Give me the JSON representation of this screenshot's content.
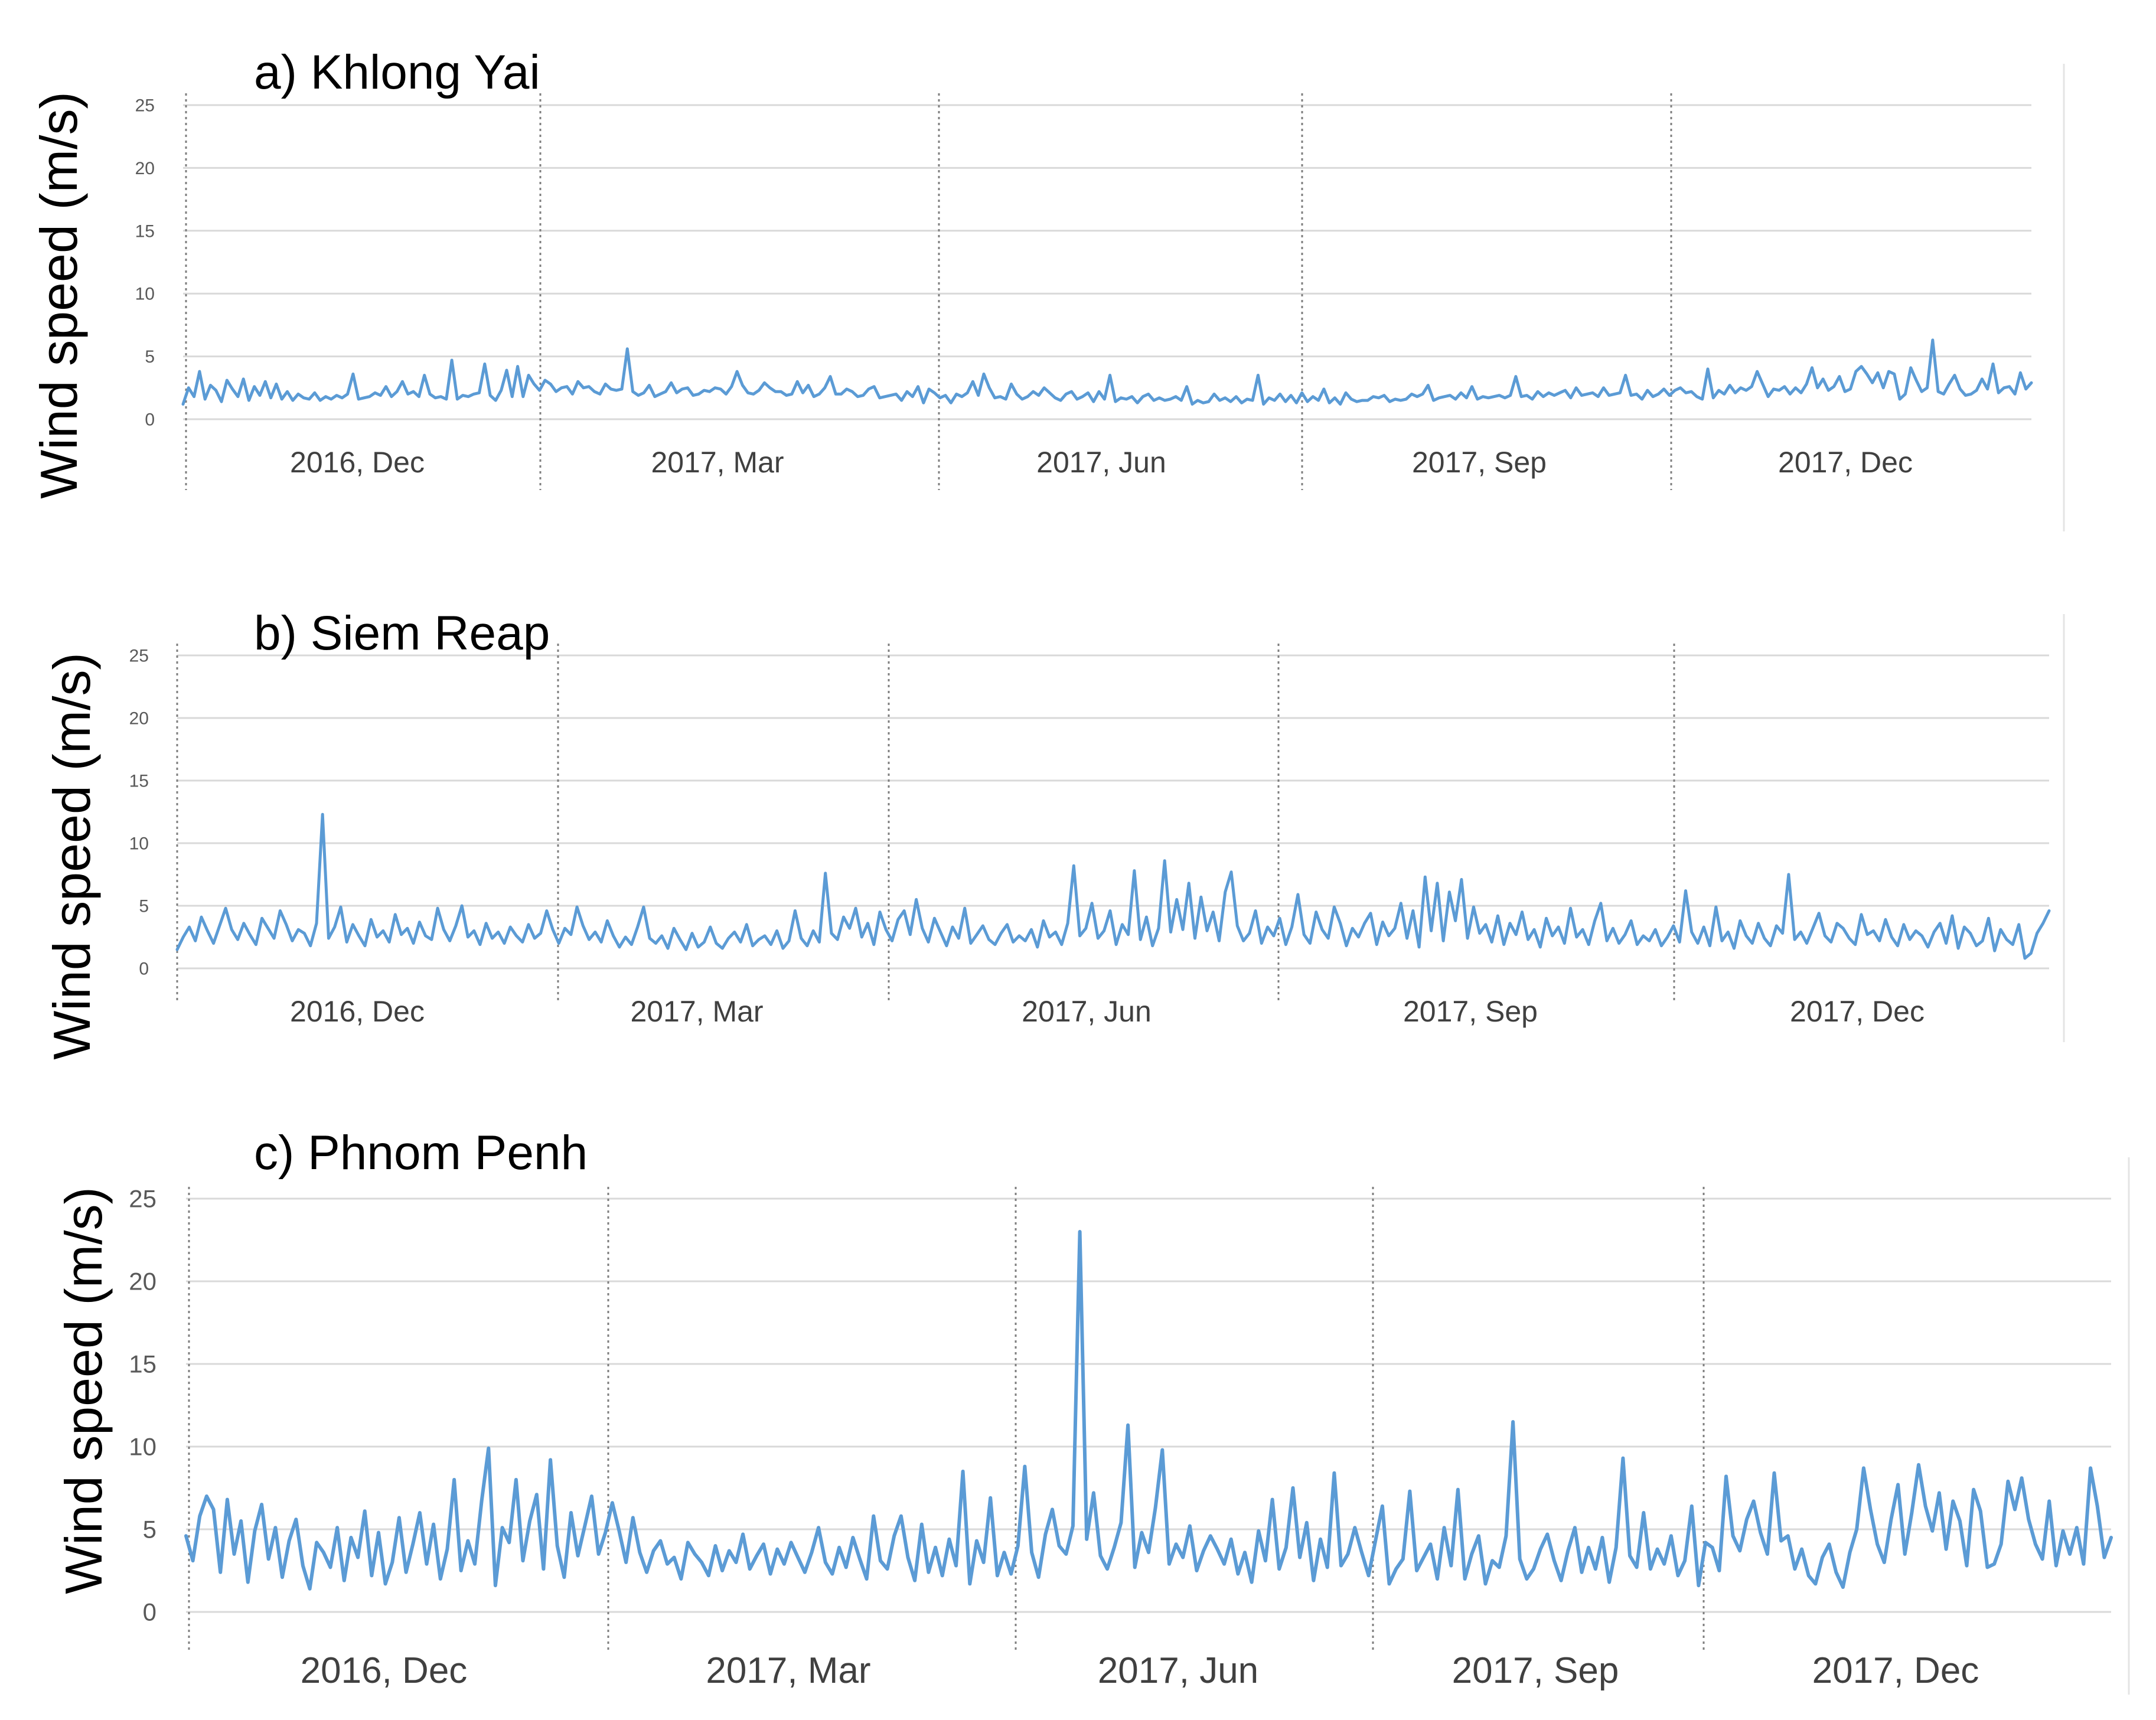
{
  "chart_data": [
    {
      "type": "line",
      "title": "a) Khlong Yai",
      "ylabel": "Wind speed (m/s)",
      "xlabel": "",
      "ylim": [
        0,
        25
      ],
      "yticks": [
        0,
        5,
        10,
        15,
        20,
        25
      ],
      "x_range": [
        "2016-11-01",
        "2018-01-31"
      ],
      "xtick_labels": [
        "2016, Dec",
        "2017, Mar",
        "2017, Jun",
        "2017, Sep",
        "2017, Dec"
      ],
      "grid": true,
      "color": "#5b9bd5",
      "series": [
        {
          "name": "",
          "values": [
            1.2,
            2.5,
            1.8,
            3.8,
            1.6,
            2.7,
            2.3,
            1.4,
            3.1,
            2.4,
            1.8,
            3.2,
            1.5,
            2.6,
            1.9,
            3.0,
            1.7,
            2.8,
            1.6,
            2.2,
            1.5,
            2.0,
            1.7,
            1.6,
            2.1,
            1.5,
            1.8,
            1.6,
            1.9,
            1.7,
            2.0,
            3.6,
            1.6,
            1.7,
            1.8,
            2.1,
            1.9,
            2.6,
            1.8,
            2.2,
            3.0,
            2.0,
            2.2,
            1.8,
            3.5,
            2.0,
            1.7,
            1.8,
            1.6,
            4.7,
            1.6,
            1.9,
            1.8,
            2.0,
            2.1,
            4.4,
            1.9,
            1.5,
            2.3,
            3.9,
            1.8,
            4.2,
            1.8,
            3.5,
            2.8,
            2.3,
            3.1,
            2.8,
            2.2,
            2.5,
            2.6,
            2.0,
            3.0,
            2.5,
            2.6,
            2.2,
            2.0,
            2.8,
            2.4,
            2.3,
            2.4,
            5.6,
            2.2,
            1.9,
            2.1,
            2.7,
            1.8,
            2.0,
            2.2,
            2.9,
            2.1,
            2.4,
            2.5,
            1.9,
            2.0,
            2.3,
            2.2,
            2.5,
            2.4,
            2.0,
            2.6,
            3.8,
            2.7,
            2.1,
            2.0,
            2.3,
            2.9,
            2.5,
            2.2,
            2.2,
            1.9,
            2.0,
            3.0,
            2.1,
            2.7,
            1.8,
            2.0,
            2.5,
            3.4,
            2.0,
            2.0,
            2.4,
            2.2,
            1.8,
            1.9,
            2.4,
            2.6,
            1.7,
            1.8,
            1.9,
            2.0,
            1.5,
            2.2,
            1.8,
            2.6,
            1.3,
            2.4,
            2.1,
            1.7,
            1.9,
            1.3,
            2.0,
            1.8,
            2.1,
            3.0,
            1.9,
            3.6,
            2.5,
            1.7,
            1.8,
            1.6,
            2.8,
            2.0,
            1.6,
            1.8,
            2.2,
            1.9,
            2.5,
            2.1,
            1.7,
            1.5,
            2.0,
            2.2,
            1.6,
            1.8,
            2.1,
            1.4,
            2.2,
            1.6,
            3.5,
            1.4,
            1.7,
            1.6,
            1.8,
            1.3,
            1.8,
            2.0,
            1.5,
            1.7,
            1.5,
            1.6,
            1.8,
            1.5,
            2.6,
            1.2,
            1.5,
            1.3,
            1.4,
            2.0,
            1.5,
            1.7,
            1.4,
            1.8,
            1.3,
            1.6,
            1.5,
            3.5,
            1.2,
            1.7,
            1.5,
            2.0,
            1.4,
            1.9,
            1.3,
            2.1,
            1.4,
            1.8,
            1.5,
            2.4,
            1.3,
            1.7,
            1.2,
            2.1,
            1.6,
            1.4,
            1.5,
            1.5,
            1.8,
            1.7,
            1.9,
            1.4,
            1.6,
            1.5,
            1.6,
            2.0,
            1.8,
            2.0,
            2.7,
            1.5,
            1.7,
            1.8,
            1.9,
            1.6,
            2.1,
            1.7,
            2.6,
            1.6,
            1.8,
            1.7,
            1.8,
            1.9,
            1.7,
            1.9,
            3.4,
            1.8,
            1.9,
            1.6,
            2.2,
            1.8,
            2.1,
            1.9,
            2.1,
            2.3,
            1.7,
            2.5,
            1.9,
            2.0,
            2.1,
            1.8,
            2.5,
            1.9,
            2.0,
            2.1,
            3.5,
            1.9,
            2.0,
            1.6,
            2.3,
            1.8,
            2.0,
            2.4,
            1.9,
            2.3,
            2.5,
            2.1,
            2.2,
            1.8,
            1.6,
            4.0,
            1.7,
            2.3,
            2.0,
            2.7,
            2.1,
            2.5,
            2.3,
            2.6,
            3.8,
            2.8,
            1.8,
            2.4,
            2.3,
            2.6,
            2.0,
            2.5,
            2.1,
            2.8,
            4.1,
            2.5,
            3.2,
            2.3,
            2.6,
            3.4,
            2.2,
            2.4,
            3.8,
            4.2,
            3.6,
            2.9,
            3.7,
            2.5,
            3.8,
            3.6,
            1.6,
            2.0,
            4.1,
            3.1,
            2.2,
            2.5,
            6.3,
            2.2,
            2.0,
            2.8,
            3.5,
            2.4,
            1.9,
            2.0,
            2.3,
            3.2,
            2.4,
            4.4,
            2.1,
            2.5,
            2.6,
            2.0,
            3.7,
            2.4,
            2.9
          ]
        }
      ]
    },
    {
      "type": "line",
      "title": "b) Siem Reap",
      "ylabel": "Wind speed (m/s)",
      "xlabel": "",
      "ylim": [
        0,
        25
      ],
      "yticks": [
        0,
        5,
        10,
        15,
        20,
        25
      ],
      "x_range": [
        "2016-11-01",
        "2018-01-31"
      ],
      "xtick_labels": [
        "2016, Dec",
        "2017, Mar",
        "2017, Jun",
        "2017, Sep",
        "2017, Dec"
      ],
      "grid": true,
      "color": "#5b9bd5",
      "series": [
        {
          "name": "",
          "values": [
            1.5,
            2.5,
            3.3,
            2.2,
            4.1,
            3.0,
            2.0,
            3.4,
            4.8,
            3.1,
            2.3,
            3.6,
            2.7,
            1.9,
            4.0,
            3.2,
            2.4,
            4.6,
            3.5,
            2.2,
            3.1,
            2.8,
            1.8,
            3.6,
            12.3,
            2.4,
            3.3,
            4.9,
            2.1,
            3.5,
            2.6,
            1.8,
            3.9,
            2.5,
            3.0,
            2.1,
            4.3,
            2.7,
            3.2,
            2.0,
            3.7,
            2.6,
            2.3,
            4.8,
            3.1,
            2.2,
            3.4,
            5.0,
            2.5,
            3.0,
            1.9,
            3.6,
            2.4,
            2.9,
            2.0,
            3.3,
            2.6,
            2.1,
            3.5,
            2.4,
            2.8,
            4.6,
            3.1,
            2.0,
            3.2,
            2.7,
            4.9,
            3.4,
            2.3,
            2.9,
            2.1,
            3.8,
            2.6,
            1.7,
            2.5,
            1.9,
            3.3,
            4.9,
            2.4,
            2.0,
            2.6,
            1.6,
            3.2,
            2.3,
            1.5,
            2.8,
            1.7,
            2.1,
            3.3,
            2.0,
            1.6,
            2.4,
            2.9,
            2.1,
            3.5,
            1.8,
            2.3,
            2.6,
            1.9,
            3.0,
            1.6,
            2.2,
            4.6,
            2.4,
            1.8,
            3.0,
            2.1,
            7.6,
            2.8,
            2.3,
            4.1,
            3.2,
            4.8,
            2.5,
            3.6,
            1.9,
            4.5,
            3.1,
            2.2,
            3.9,
            4.6,
            2.7,
            5.5,
            3.2,
            2.1,
            4.0,
            2.9,
            1.8,
            3.3,
            2.4,
            4.8,
            2.0,
            2.7,
            3.4,
            2.3,
            1.9,
            2.8,
            3.5,
            2.1,
            2.6,
            2.2,
            3.1,
            1.7,
            3.8,
            2.5,
            2.9,
            1.9,
            3.6,
            8.2,
            2.6,
            3.2,
            5.2,
            2.4,
            3.0,
            4.6,
            1.9,
            3.5,
            2.7,
            7.8,
            2.3,
            4.1,
            1.8,
            3.2,
            8.6,
            2.9,
            5.5,
            3.1,
            6.8,
            2.4,
            5.7,
            3.0,
            4.5,
            2.2,
            6.1,
            7.7,
            3.4,
            2.2,
            2.8,
            4.6,
            2.0,
            3.3,
            2.6,
            4.0,
            1.9,
            3.3,
            5.9,
            2.7,
            2.0,
            4.5,
            3.1,
            2.4,
            4.9,
            3.6,
            1.8,
            3.2,
            2.5,
            3.6,
            4.4,
            1.9,
            3.7,
            2.6,
            3.2,
            5.2,
            2.4,
            4.6,
            1.7,
            7.3,
            3.0,
            6.8,
            2.2,
            6.1,
            3.8,
            7.1,
            2.4,
            4.9,
            2.8,
            3.5,
            2.1,
            4.2,
            1.9,
            3.6,
            2.7,
            4.5,
            2.3,
            3.1,
            1.7,
            4.0,
            2.6,
            3.3,
            2.0,
            4.8,
            2.5,
            3.1,
            1.9,
            3.8,
            5.2,
            2.2,
            3.2,
            2.0,
            2.7,
            3.8,
            1.9,
            2.6,
            2.2,
            3.1,
            1.8,
            2.5,
            3.4,
            2.1,
            6.2,
            2.9,
            2.0,
            3.3,
            1.8,
            4.9,
            2.2,
            2.9,
            1.6,
            3.8,
            2.6,
            2.0,
            3.6,
            2.4,
            1.8,
            3.4,
            2.8,
            7.5,
            2.3,
            2.9,
            2.0,
            3.2,
            4.4,
            2.6,
            2.1,
            3.6,
            3.2,
            2.4,
            1.9,
            4.3,
            2.7,
            3.0,
            2.2,
            3.9,
            2.5,
            1.8,
            3.5,
            2.3,
            3.0,
            2.6,
            1.7,
            2.9,
            3.6,
            2.0,
            4.2,
            1.6,
            3.3,
            2.8,
            1.8,
            2.2,
            4.0,
            1.4,
            3.1,
            2.3,
            1.9,
            3.5,
            0.8,
            1.2,
            2.8,
            3.6,
            4.6
          ]
        }
      ]
    },
    {
      "type": "line",
      "title": "c) Phnom Penh",
      "ylabel": "Wind speed (m/s)",
      "xlabel": "",
      "ylim": [
        0,
        25
      ],
      "yticks": [
        0,
        5,
        10,
        15,
        20,
        25
      ],
      "x_range": [
        "2016-11-01",
        "2018-01-31"
      ],
      "xtick_labels": [
        "2016, Dec",
        "2017, Mar",
        "2017, Jun",
        "2017, Sep",
        "2017, Dec"
      ],
      "grid": true,
      "color": "#5b9bd5",
      "series": [
        {
          "name": "",
          "values": [
            4.6,
            3.1,
            5.8,
            7.0,
            6.2,
            2.4,
            6.8,
            3.5,
            5.5,
            1.8,
            4.9,
            6.5,
            3.2,
            5.1,
            2.1,
            4.3,
            5.6,
            2.8,
            1.4,
            4.2,
            3.6,
            2.7,
            5.1,
            1.9,
            4.5,
            3.3,
            6.1,
            2.2,
            4.8,
            1.7,
            3.0,
            5.7,
            2.4,
            4.1,
            6.0,
            2.9,
            5.3,
            2.0,
            3.8,
            8.0,
            2.5,
            4.3,
            2.9,
            6.7,
            9.9,
            1.6,
            5.1,
            4.2,
            8.0,
            3.1,
            5.5,
            7.1,
            2.6,
            9.2,
            4.0,
            2.1,
            6.0,
            3.4,
            5.2,
            7.0,
            3.5,
            4.8,
            6.6,
            4.9,
            3.0,
            5.7,
            3.6,
            2.4,
            3.7,
            4.3,
            2.9,
            3.3,
            2.0,
            4.2,
            3.5,
            3.0,
            2.2,
            4.0,
            2.5,
            3.7,
            3.0,
            4.7,
            2.6,
            3.4,
            4.1,
            2.3,
            3.8,
            2.9,
            4.2,
            3.3,
            2.4,
            3.6,
            5.1,
            3.0,
            2.3,
            3.9,
            2.7,
            4.5,
            3.2,
            2.0,
            5.8,
            3.1,
            2.6,
            4.6,
            5.8,
            3.3,
            1.9,
            5.3,
            2.4,
            3.9,
            2.2,
            4.4,
            2.8,
            8.5,
            1.7,
            4.3,
            3.0,
            6.9,
            2.2,
            3.6,
            2.3,
            4.0,
            8.8,
            3.6,
            2.1,
            4.7,
            6.2,
            4.0,
            3.5,
            5.2,
            23.0,
            4.4,
            7.2,
            3.4,
            2.6,
            3.9,
            5.4,
            11.3,
            2.7,
            4.8,
            3.6,
            6.3,
            9.8,
            2.9,
            4.1,
            3.3,
            5.2,
            2.5,
            3.7,
            4.6,
            3.8,
            2.9,
            4.4,
            2.3,
            3.6,
            1.8,
            4.9,
            3.1,
            6.8,
            2.6,
            3.9,
            7.5,
            3.3,
            5.4,
            1.9,
            4.4,
            2.7,
            8.4,
            2.8,
            3.5,
            5.1,
            3.6,
            2.2,
            4.3,
            6.4,
            1.7,
            2.6,
            3.2,
            7.3,
            2.5,
            3.3,
            4.1,
            2.0,
            5.1,
            2.8,
            7.4,
            2.0,
            3.5,
            4.6,
            1.7,
            3.1,
            2.7,
            4.6,
            11.5,
            3.2,
            2.0,
            2.6,
            3.8,
            4.7,
            3.1,
            1.9,
            3.7,
            5.1,
            2.4,
            3.9,
            2.6,
            4.5,
            1.8,
            3.9,
            9.3,
            3.4,
            2.7,
            6.0,
            2.6,
            3.8,
            2.9,
            4.6,
            2.2,
            3.1,
            6.4,
            1.6,
            4.2,
            3.9,
            2.5,
            8.2,
            4.6,
            3.7,
            5.6,
            6.7,
            4.8,
            3.5,
            8.4,
            4.3,
            4.6,
            2.6,
            3.8,
            2.2,
            1.7,
            3.3,
            4.1,
            2.4,
            1.5,
            3.6,
            5.0,
            8.7,
            6.2,
            4.1,
            3.0,
            5.6,
            7.7,
            3.5,
            6.0,
            8.9,
            6.4,
            4.9,
            7.2,
            3.8,
            6.7,
            5.5,
            2.8,
            7.4,
            6.1,
            2.7,
            2.9,
            4.1,
            7.9,
            6.2,
            8.1,
            5.6,
            4.1,
            3.2,
            6.7,
            2.8,
            4.9,
            3.5,
            5.1,
            2.9,
            8.7,
            6.4,
            3.3,
            4.5
          ]
        }
      ]
    }
  ]
}
